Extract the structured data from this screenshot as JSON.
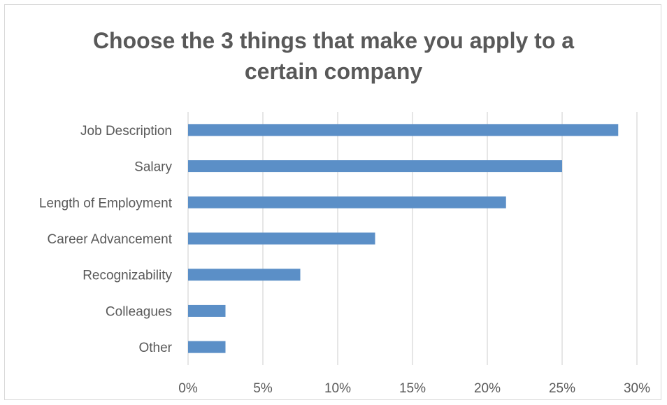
{
  "chart_data": {
    "type": "bar",
    "orientation": "horizontal",
    "title": "Choose the 3 things that make you apply to a certain company",
    "title_lines": [
      "Choose the 3 things that make you apply to a",
      "certain company"
    ],
    "categories": [
      "Job Description",
      "Salary",
      "Length of Employment",
      "Career Advancement",
      "Recognizability",
      "Colleagues",
      "Other"
    ],
    "values": [
      0.2875,
      0.25,
      0.2125,
      0.125,
      0.075,
      0.025,
      0.025
    ],
    "xlim": [
      0,
      0.3
    ],
    "x_ticks": [
      0,
      0.05,
      0.1,
      0.15,
      0.2,
      0.25,
      0.3
    ],
    "x_tick_labels": [
      "0%",
      "5%",
      "10%",
      "15%",
      "20%",
      "25%",
      "30%"
    ],
    "grid": true,
    "legend": "none",
    "bar_color": "#5b8fc7",
    "grid_color": "#d9d9d9"
  }
}
